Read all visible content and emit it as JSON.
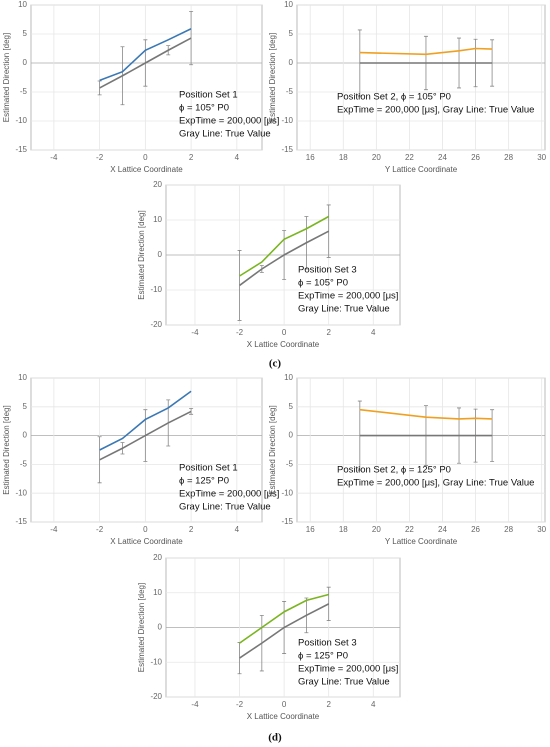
{
  "chart_data": [
    {
      "type": "line",
      "x_label": "X Lattice Coordinate",
      "y_label": "Estimated Direction [deg]",
      "annotations": [
        "Position Set 1",
        "ϕ = 105° P0",
        "ExpTime = 200,000 [μs]",
        "Gray Line: True Value"
      ],
      "x": [
        -2,
        -1,
        0,
        1,
        2
      ],
      "xlim": [
        -5,
        5.1
      ],
      "xticks": [
        -4,
        -2,
        0,
        2,
        4
      ],
      "ylim": [
        -15,
        10
      ],
      "yticks": [
        -15,
        -10,
        -5,
        0,
        5,
        10
      ],
      "grid": true,
      "series": [
        {
          "color": "#3a78b5",
          "values": [
            -3,
            -1.5,
            2.2,
            4,
            5.9
          ]
        },
        {
          "color": "#777777",
          "values": [
            -4.3,
            -2.2,
            0,
            2.2,
            4.3
          ],
          "errors": [
            1.2,
            5,
            4,
            0.8,
            4.6
          ]
        }
      ]
    },
    {
      "type": "line",
      "x_label": "Y Lattice Coordinate",
      "y_label": "Estimated Direction [deg]",
      "annotations": [
        "Position Set 2, ϕ = 105° P0",
        "ExpTime = 200,000 [μs], Gray Line: True Value"
      ],
      "x": [
        19,
        23,
        25,
        26,
        27
      ],
      "xlim": [
        15.2,
        30.2
      ],
      "xticks": [
        16,
        18,
        20,
        22,
        24,
        26,
        28,
        30
      ],
      "ylim": [
        -15,
        10
      ],
      "yticks": [
        -15,
        -10,
        -5,
        0,
        5,
        10
      ],
      "grid": true,
      "series": [
        {
          "color": "#f0a020",
          "values": [
            1.8,
            1.5,
            2.1,
            2.5,
            2.4
          ]
        },
        {
          "color": "#777777",
          "values": [
            0,
            0,
            0,
            0,
            0
          ],
          "errors": [
            5.7,
            4.6,
            4.3,
            4.1,
            4
          ]
        }
      ]
    },
    {
      "type": "line",
      "x_label": "X Lattice Coordinate",
      "y_label": "Estimated Direction [deg]",
      "annotations": [
        "Position Set 3",
        "ϕ = 105° P0",
        "ExpTime = 200,000 [μs]",
        "Gray Line: True Value"
      ],
      "x": [
        -2,
        -1,
        0,
        1,
        2
      ],
      "xlim": [
        -5.3,
        5.2
      ],
      "xticks": [
        -4,
        -2,
        0,
        2,
        4
      ],
      "ylim": [
        -20,
        20
      ],
      "yticks": [
        -20,
        -10,
        0,
        10,
        20
      ],
      "grid": true,
      "series": [
        {
          "color": "#7ab520",
          "values": [
            -6,
            -2,
            4.5,
            7.5,
            11
          ]
        },
        {
          "color": "#777777",
          "values": [
            -8.7,
            -4,
            0,
            3.5,
            6.8
          ],
          "errors": [
            10,
            1,
            7,
            7.5,
            7.5
          ]
        }
      ]
    },
    {
      "type": "line",
      "x_label": "X Lattice Coordinate",
      "y_label": "Estimated Direction [deg]",
      "annotations": [
        "Position Set 1",
        "ϕ = 125° P0",
        "ExpTime = 200,000 [μs]",
        "Gray Line: True Value"
      ],
      "x": [
        -2,
        -1,
        0,
        1,
        2
      ],
      "xlim": [
        -5,
        5.1
      ],
      "xticks": [
        -4,
        -2,
        0,
        2,
        4
      ],
      "ylim": [
        -15,
        10
      ],
      "yticks": [
        -15,
        -10,
        -5,
        0,
        5,
        10
      ],
      "grid": true,
      "series": [
        {
          "color": "#3a78b5",
          "values": [
            -2.5,
            -0.5,
            2.8,
            4.8,
            7.7
          ]
        },
        {
          "color": "#777777",
          "values": [
            -4.2,
            -2.2,
            0,
            2.2,
            4.2
          ],
          "errors": [
            4,
            1,
            4.5,
            4,
            0.5
          ]
        }
      ]
    },
    {
      "type": "line",
      "x_label": "Y Lattice Coordinate",
      "y_label": "Estimated Direction [deg]",
      "annotations": [
        "Position Set 2, ϕ = 125° P0",
        "ExpTime = 200,000 [μs], Gray Line: True Value"
      ],
      "x": [
        19,
        23,
        25,
        26,
        27
      ],
      "xlim": [
        15.2,
        30.2
      ],
      "xticks": [
        16,
        18,
        20,
        22,
        24,
        26,
        28,
        30
      ],
      "ylim": [
        -15,
        10
      ],
      "yticks": [
        -15,
        -10,
        -5,
        0,
        5,
        10
      ],
      "grid": true,
      "series": [
        {
          "color": "#f0a020",
          "values": [
            4.5,
            3.2,
            2.9,
            3,
            2.9
          ]
        },
        {
          "color": "#777777",
          "values": [
            0,
            0,
            0,
            0,
            0
          ],
          "errors": [
            6,
            5.2,
            4.8,
            4.6,
            4.5
          ]
        }
      ]
    },
    {
      "type": "line",
      "x_label": "X Lattice Coordinate",
      "y_label": "Estimated Direction [deg]",
      "annotations": [
        "Position Set 3",
        "ϕ = 125° P0",
        "ExpTime = 200,000 [μs]",
        "Gray Line: True Value"
      ],
      "x": [
        -2,
        -1,
        0,
        1,
        2
      ],
      "xlim": [
        -5.3,
        5.2
      ],
      "xticks": [
        -4,
        -2,
        0,
        2,
        4
      ],
      "ylim": [
        -20,
        20
      ],
      "yticks": [
        -20,
        -10,
        0,
        10,
        20
      ],
      "grid": true,
      "series": [
        {
          "color": "#7ab520",
          "values": [
            -4.5,
            0,
            4.5,
            7.8,
            9.5
          ]
        },
        {
          "color": "#777777",
          "values": [
            -8.8,
            -4.5,
            0,
            3.5,
            6.8
          ],
          "errors": [
            4.5,
            8,
            7.5,
            5,
            4.8
          ]
        }
      ]
    }
  ],
  "captions": [
    "(c)",
    "(d)"
  ]
}
